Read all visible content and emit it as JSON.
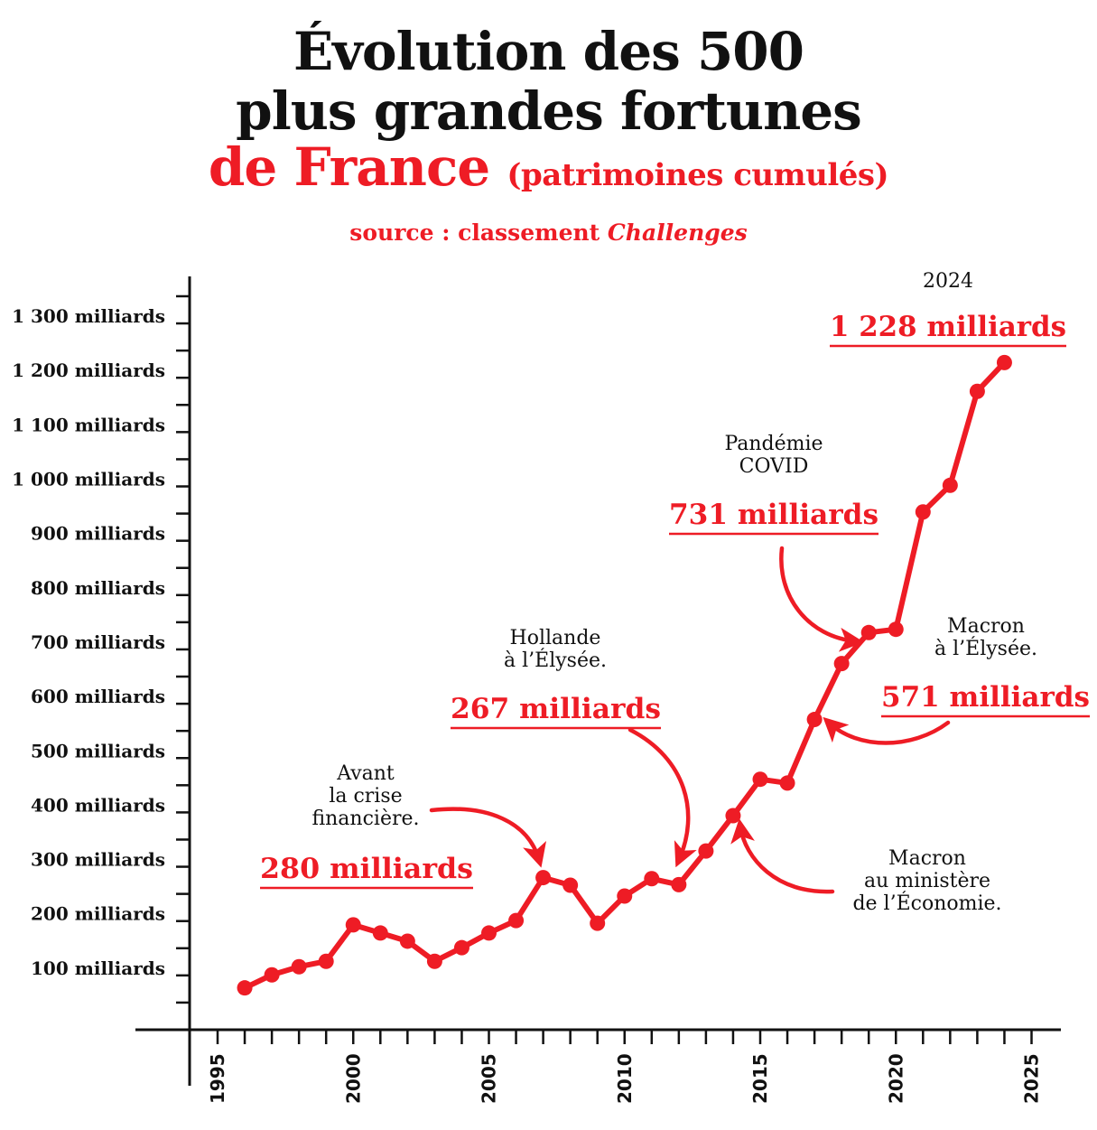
{
  "header": {
    "title_line1": "Évolution des 500",
    "title_line2": "plus grandes fortunes",
    "title_line3": "de France",
    "title_sub": "(patrimoines cumulés)",
    "source_prefix": "source : classement ",
    "source_name": "Challenges"
  },
  "colors": {
    "accent": "#ee1c25",
    "text": "#111111"
  },
  "chart_data": {
    "type": "line",
    "title": "Évolution des 500 plus grandes fortunes de France (patrimoines cumulés)",
    "subtitle": "source : classement Challenges",
    "xlabel": "",
    "ylabel": "",
    "unit": "milliards",
    "xlim": [
      1994,
      2026
    ],
    "ylim": [
      0,
      1380
    ],
    "x_ticks": [
      1995,
      2000,
      2005,
      2010,
      2015,
      2020,
      2025
    ],
    "x_tick_labels": [
      "1995",
      "2000",
      "2005",
      "2010",
      "2015",
      "2020",
      "2025"
    ],
    "y_ticks": [
      100,
      200,
      300,
      400,
      500,
      600,
      700,
      800,
      900,
      1000,
      1100,
      1200,
      1300
    ],
    "y_tick_labels": [
      "100 milliards",
      "200 milliards",
      "300 milliards",
      "400 milliards",
      "500 milliards",
      "600 milliards",
      "700 milliards",
      "800 milliards",
      "900 milliards",
      "1 000 milliards",
      "1 100 milliards",
      "1 200 milliards",
      "1 300 milliards"
    ],
    "grid": false,
    "legend": "none",
    "series": [
      {
        "name": "Patrimoines cumulés des 500 plus grandes fortunes",
        "x": [
          1996,
          1997,
          1998,
          1999,
          2000,
          2001,
          2002,
          2003,
          2004,
          2005,
          2006,
          2007,
          2008,
          2009,
          2010,
          2011,
          2012,
          2013,
          2014,
          2015,
          2016,
          2017,
          2018,
          2019,
          2020,
          2021,
          2022,
          2023,
          2024
        ],
        "values": [
          77,
          101,
          116,
          126,
          193,
          178,
          163,
          126,
          151,
          178,
          201,
          280,
          266,
          196,
          246,
          278,
          267,
          329,
          394,
          461,
          454,
          571,
          674,
          731,
          737,
          953,
          1002,
          1175,
          1228
        ]
      }
    ],
    "annotations": [
      {
        "lines": [
          "Avant",
          "la crise",
          "financière."
        ],
        "value_label": "280 milliards",
        "x": 2007
      },
      {
        "lines": [
          "Hollande",
          "à l’Élysée."
        ],
        "value_label": "267 milliards",
        "x": 2012
      },
      {
        "lines": [
          "Macron",
          "au ministère",
          "de l’Économie."
        ],
        "value_label": "",
        "x": 2014
      },
      {
        "lines": [
          "Macron",
          "à l’Élysée."
        ],
        "value_label": "571 milliards",
        "x": 2017
      },
      {
        "lines": [
          "Pandémie",
          "COVID"
        ],
        "value_label": "731 milliards",
        "x": 2019
      },
      {
        "lines": [
          "2024"
        ],
        "value_label": "1 228 milliards",
        "x": 2024
      }
    ]
  }
}
